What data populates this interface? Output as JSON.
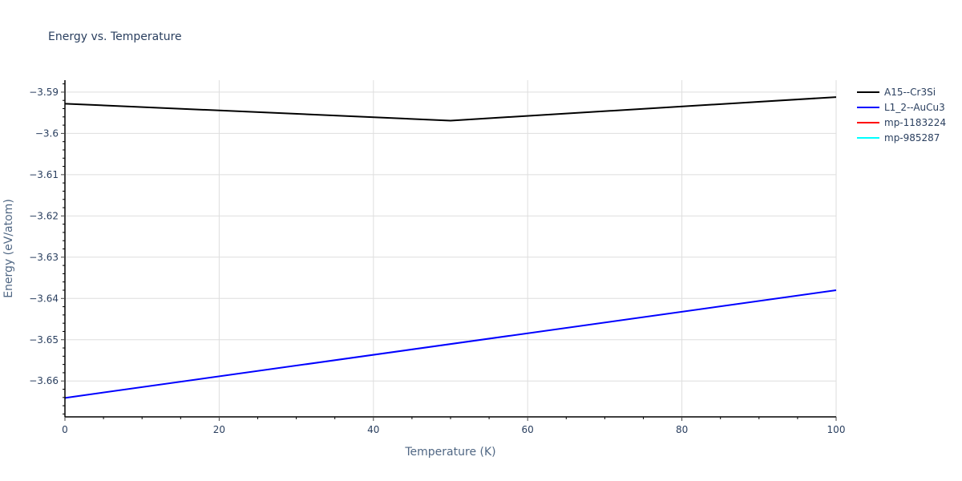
{
  "chart_data": {
    "type": "line",
    "title": "Energy vs. Temperature",
    "xlabel": "Temperature (K)",
    "ylabel": "Energy (eV/atom)",
    "xlim": [
      0,
      100
    ],
    "ylim": [
      -3.6687,
      -3.5871
    ],
    "x_ticks": [
      0,
      20,
      40,
      60,
      80,
      100
    ],
    "y_ticks": [
      -3.59,
      -3.6,
      -3.61,
      -3.62,
      -3.63,
      -3.64,
      -3.65,
      -3.66
    ],
    "y_tick_labels": [
      "−3.59",
      "−3.6",
      "−3.61",
      "−3.62",
      "−3.63",
      "−3.64",
      "−3.65",
      "−3.66"
    ],
    "x_tick_labels": [
      "0",
      "20",
      "40",
      "60",
      "80",
      "100"
    ],
    "grid": true,
    "legend_position": "right-top",
    "series": [
      {
        "name": "A15--Cr3Si",
        "color": "#000000",
        "x": [
          0,
          50,
          100
        ],
        "y": [
          -3.5928,
          -3.5969,
          -3.5912
        ]
      },
      {
        "name": "L1_2--AuCu3",
        "color": "#0000ff",
        "x": [
          0,
          100
        ],
        "y": [
          -3.6641,
          -3.638
        ]
      },
      {
        "name": "mp-1183224",
        "color": "#ff0000",
        "x": [],
        "y": []
      },
      {
        "name": "mp-985287",
        "color": "#00ffff",
        "x": [],
        "y": []
      }
    ]
  }
}
